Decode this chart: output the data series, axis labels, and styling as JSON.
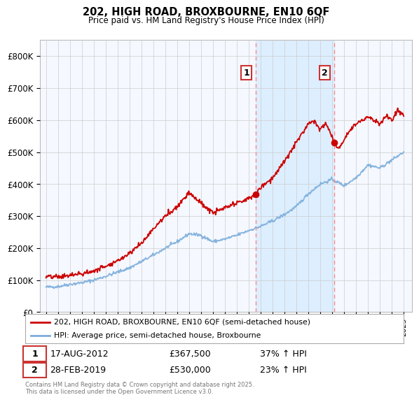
{
  "title": "202, HIGH ROAD, BROXBOURNE, EN10 6QF",
  "subtitle": "Price paid vs. HM Land Registry's House Price Index (HPI)",
  "ylabel_ticks": [
    "£0",
    "£100K",
    "£200K",
    "£300K",
    "£400K",
    "£500K",
    "£600K",
    "£700K",
    "£800K"
  ],
  "ytick_vals": [
    0,
    100000,
    200000,
    300000,
    400000,
    500000,
    600000,
    700000,
    800000
  ],
  "ylim": [
    0,
    850000
  ],
  "xlim_start": 1994.5,
  "xlim_end": 2025.7,
  "sale1_date": 2012.62,
  "sale1_price": 367500,
  "sale2_date": 2019.17,
  "sale2_price": 530000,
  "red_color": "#cc0000",
  "blue_color": "#7aaddb",
  "shade_color": "#ddeeff",
  "dot_color": "#cc0000",
  "vline_color": "#ff8888",
  "bg_color": "#f5f8ff",
  "grid_color": "#cccccc",
  "legend1": "202, HIGH ROAD, BROXBOURNE, EN10 6QF (semi-detached house)",
  "legend2": "HPI: Average price, semi-detached house, Broxbourne",
  "annotation1_date": "17-AUG-2012",
  "annotation1_price": "£367,500",
  "annotation1_pct": "37% ↑ HPI",
  "annotation2_date": "28-FEB-2019",
  "annotation2_price": "£530,000",
  "annotation2_pct": "23% ↑ HPI",
  "footer": "Contains HM Land Registry data © Crown copyright and database right 2025.\nThis data is licensed under the Open Government Licence v3.0.",
  "hpi_waypoints_x": [
    1995,
    1996,
    1997,
    1998,
    1999,
    2000,
    2001,
    2002,
    2003,
    2004,
    2005,
    2006,
    2007,
    2008,
    2009,
    2010,
    2011,
    2012,
    2013,
    2014,
    2015,
    2016,
    2017,
    2018,
    2019,
    2020,
    2021,
    2022,
    2023,
    2024,
    2025
  ],
  "hpi_waypoints_y": [
    78000,
    80000,
    87000,
    92000,
    100000,
    112000,
    125000,
    138000,
    158000,
    178000,
    200000,
    220000,
    245000,
    240000,
    220000,
    228000,
    240000,
    255000,
    268000,
    285000,
    305000,
    330000,
    370000,
    400000,
    415000,
    395000,
    420000,
    460000,
    450000,
    475000,
    500000
  ],
  "red_waypoints_x": [
    1995,
    1996,
    1997,
    1998,
    1999,
    2000,
    2001,
    2002,
    2003,
    2004,
    2005,
    2006,
    2007,
    2008,
    2009,
    2010,
    2011,
    2012,
    2012.62,
    2013,
    2014,
    2015,
    2016,
    2017,
    2017.5,
    2018,
    2018.5,
    2019.17,
    2019.5,
    2020,
    2020.5,
    2021,
    2022,
    2023,
    2023.5,
    2024,
    2024.5,
    2025
  ],
  "red_waypoints_y": [
    110000,
    110000,
    115000,
    120000,
    128000,
    145000,
    160000,
    185000,
    215000,
    260000,
    300000,
    330000,
    375000,
    340000,
    310000,
    325000,
    340000,
    355000,
    367500,
    390000,
    420000,
    470000,
    530000,
    590000,
    600000,
    570000,
    590000,
    530000,
    510000,
    540000,
    570000,
    590000,
    610000,
    590000,
    610000,
    600000,
    630000,
    615000
  ]
}
